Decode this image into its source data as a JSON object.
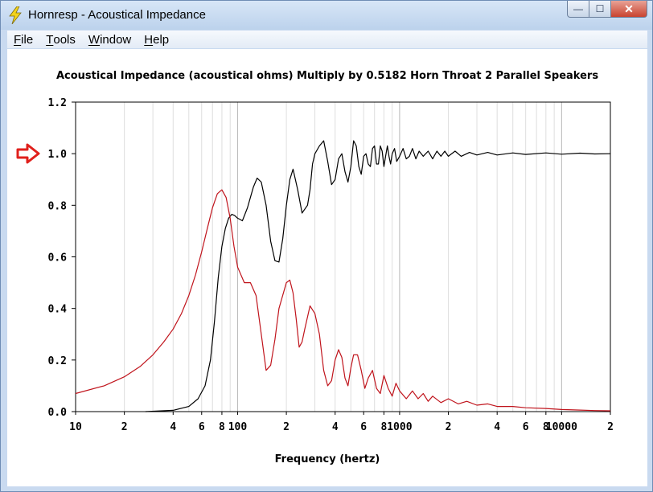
{
  "window": {
    "title": "Hornresp - Acoustical Impedance",
    "caption_buttons": {
      "minimize": "—",
      "maximize": "☐",
      "close": "✕"
    }
  },
  "menu": {
    "items": [
      {
        "accel": "F",
        "rest": "ile"
      },
      {
        "accel": "T",
        "rest": "ools"
      },
      {
        "accel": "W",
        "rest": "indow"
      },
      {
        "accel": "H",
        "rest": "elp"
      }
    ]
  },
  "chart_data": {
    "type": "line",
    "title": "Acoustical Impedance (acoustical ohms)   Multiply by 0.5182   Horn Throat   2 Parallel Speakers",
    "xlabel": "Frequency (hertz)",
    "ylabel": "",
    "xscale": "log",
    "xlim": [
      10,
      20000
    ],
    "ylim": [
      0,
      1.2
    ],
    "grid": true,
    "reference_marker": {
      "y": 1.0,
      "color": "#e0201c"
    },
    "x_tick_labels": [
      {
        "x": 10,
        "label": "10"
      },
      {
        "x": 20,
        "label": "2"
      },
      {
        "x": 40,
        "label": "4"
      },
      {
        "x": 60,
        "label": "6"
      },
      {
        "x": 80,
        "label": "8"
      },
      {
        "x": 100,
        "label": "100"
      },
      {
        "x": 200,
        "label": "2"
      },
      {
        "x": 400,
        "label": "4"
      },
      {
        "x": 600,
        "label": "6"
      },
      {
        "x": 800,
        "label": "8"
      },
      {
        "x": 1000,
        "label": "1000"
      },
      {
        "x": 2000,
        "label": "2"
      },
      {
        "x": 4000,
        "label": "4"
      },
      {
        "x": 6000,
        "label": "6"
      },
      {
        "x": 8000,
        "label": "8"
      },
      {
        "x": 10000,
        "label": "10000"
      },
      {
        "x": 20000,
        "label": "2"
      }
    ],
    "y_tick_labels": [
      {
        "y": 0.0,
        "label": "0.0"
      },
      {
        "y": 0.2,
        "label": "0.2"
      },
      {
        "y": 0.4,
        "label": "0.4"
      },
      {
        "y": 0.6,
        "label": "0.6"
      },
      {
        "y": 0.8,
        "label": "0.8"
      },
      {
        "y": 1.0,
        "label": "1.0"
      },
      {
        "y": 1.2,
        "label": "1.2"
      }
    ],
    "series": [
      {
        "color": "#000000",
        "x": [
          27,
          40,
          50,
          57,
          63,
          68,
          72,
          76,
          80,
          84,
          88,
          92,
          96,
          100,
          107,
          115,
          125,
          132,
          140,
          150,
          160,
          170,
          180,
          190,
          200,
          210,
          220,
          235,
          250,
          270,
          280,
          290,
          300,
          320,
          340,
          360,
          380,
          400,
          420,
          440,
          460,
          480,
          500,
          520,
          540,
          560,
          580,
          600,
          620,
          640,
          660,
          680,
          700,
          720,
          740,
          760,
          780,
          800,
          820,
          840,
          860,
          880,
          900,
          930,
          960,
          1000,
          1050,
          1100,
          1150,
          1200,
          1260,
          1320,
          1400,
          1500,
          1600,
          1700,
          1800,
          1900,
          2000,
          2200,
          2400,
          2700,
          3000,
          3500,
          4000,
          5000,
          6000,
          8000,
          10000,
          13000,
          16000,
          20000
        ],
        "y": [
          0.0,
          0.005,
          0.02,
          0.05,
          0.1,
          0.2,
          0.35,
          0.52,
          0.64,
          0.71,
          0.75,
          0.765,
          0.76,
          0.75,
          0.74,
          0.79,
          0.87,
          0.905,
          0.89,
          0.8,
          0.66,
          0.585,
          0.58,
          0.67,
          0.8,
          0.9,
          0.94,
          0.86,
          0.77,
          0.8,
          0.86,
          0.96,
          1.0,
          1.03,
          1.05,
          0.97,
          0.88,
          0.9,
          0.98,
          1.0,
          0.93,
          0.89,
          0.95,
          1.05,
          1.03,
          0.95,
          0.92,
          0.99,
          1.0,
          0.96,
          0.95,
          1.02,
          1.03,
          0.96,
          0.96,
          1.03,
          1.01,
          0.95,
          0.99,
          1.03,
          0.99,
          0.96,
          1.0,
          1.02,
          0.97,
          0.99,
          1.02,
          0.98,
          0.99,
          1.02,
          0.98,
          1.01,
          0.99,
          1.01,
          0.98,
          1.01,
          0.99,
          1.01,
          0.99,
          1.01,
          0.99,
          1.005,
          0.995,
          1.005,
          0.995,
          1.003,
          0.997,
          1.003,
          0.998,
          1.002,
          0.999,
          1.0
        ]
      },
      {
        "color": "#c0141c",
        "x": [
          10,
          15,
          20,
          25,
          30,
          35,
          40,
          45,
          50,
          55,
          60,
          65,
          70,
          75,
          80,
          85,
          90,
          95,
          100,
          110,
          120,
          130,
          140,
          150,
          160,
          170,
          180,
          200,
          210,
          220,
          230,
          240,
          250,
          260,
          280,
          300,
          320,
          340,
          360,
          380,
          400,
          420,
          440,
          460,
          480,
          500,
          520,
          550,
          580,
          610,
          640,
          680,
          720,
          760,
          800,
          850,
          900,
          950,
          1000,
          1100,
          1200,
          1300,
          1400,
          1500,
          1600,
          1800,
          2000,
          2300,
          2600,
          3000,
          3500,
          4000,
          5000,
          6000,
          8000,
          10000,
          13000,
          16000,
          20000
        ],
        "y": [
          0.07,
          0.1,
          0.135,
          0.175,
          0.22,
          0.27,
          0.32,
          0.38,
          0.45,
          0.53,
          0.62,
          0.71,
          0.79,
          0.845,
          0.86,
          0.83,
          0.75,
          0.64,
          0.56,
          0.5,
          0.5,
          0.45,
          0.3,
          0.16,
          0.18,
          0.28,
          0.4,
          0.5,
          0.51,
          0.46,
          0.36,
          0.25,
          0.27,
          0.32,
          0.41,
          0.38,
          0.3,
          0.16,
          0.1,
          0.12,
          0.2,
          0.24,
          0.21,
          0.13,
          0.1,
          0.17,
          0.22,
          0.22,
          0.16,
          0.09,
          0.13,
          0.16,
          0.09,
          0.07,
          0.14,
          0.09,
          0.06,
          0.11,
          0.08,
          0.05,
          0.08,
          0.05,
          0.07,
          0.04,
          0.06,
          0.035,
          0.05,
          0.03,
          0.04,
          0.025,
          0.03,
          0.02,
          0.02,
          0.015,
          0.012,
          0.008,
          0.006,
          0.004,
          0.003
        ]
      }
    ]
  }
}
